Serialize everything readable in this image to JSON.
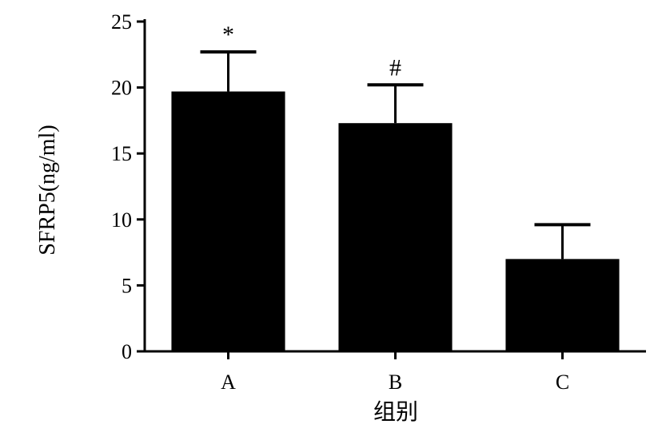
{
  "chart_data": {
    "type": "bar",
    "categories": [
      "A",
      "B",
      "C"
    ],
    "values": [
      19.7,
      17.3,
      7.0
    ],
    "error": [
      3.0,
      2.9,
      2.6
    ],
    "annotations": [
      "*",
      "#",
      ""
    ],
    "xlabel": "组别",
    "ylabel": "SFRP5(ng/ml)",
    "ylim": [
      0,
      25
    ],
    "yticks": [
      0,
      5,
      10,
      15,
      20,
      25
    ],
    "grid": false,
    "colors": {
      "bar": "#000000",
      "axis": "#000000",
      "background": "#ffffff"
    }
  }
}
